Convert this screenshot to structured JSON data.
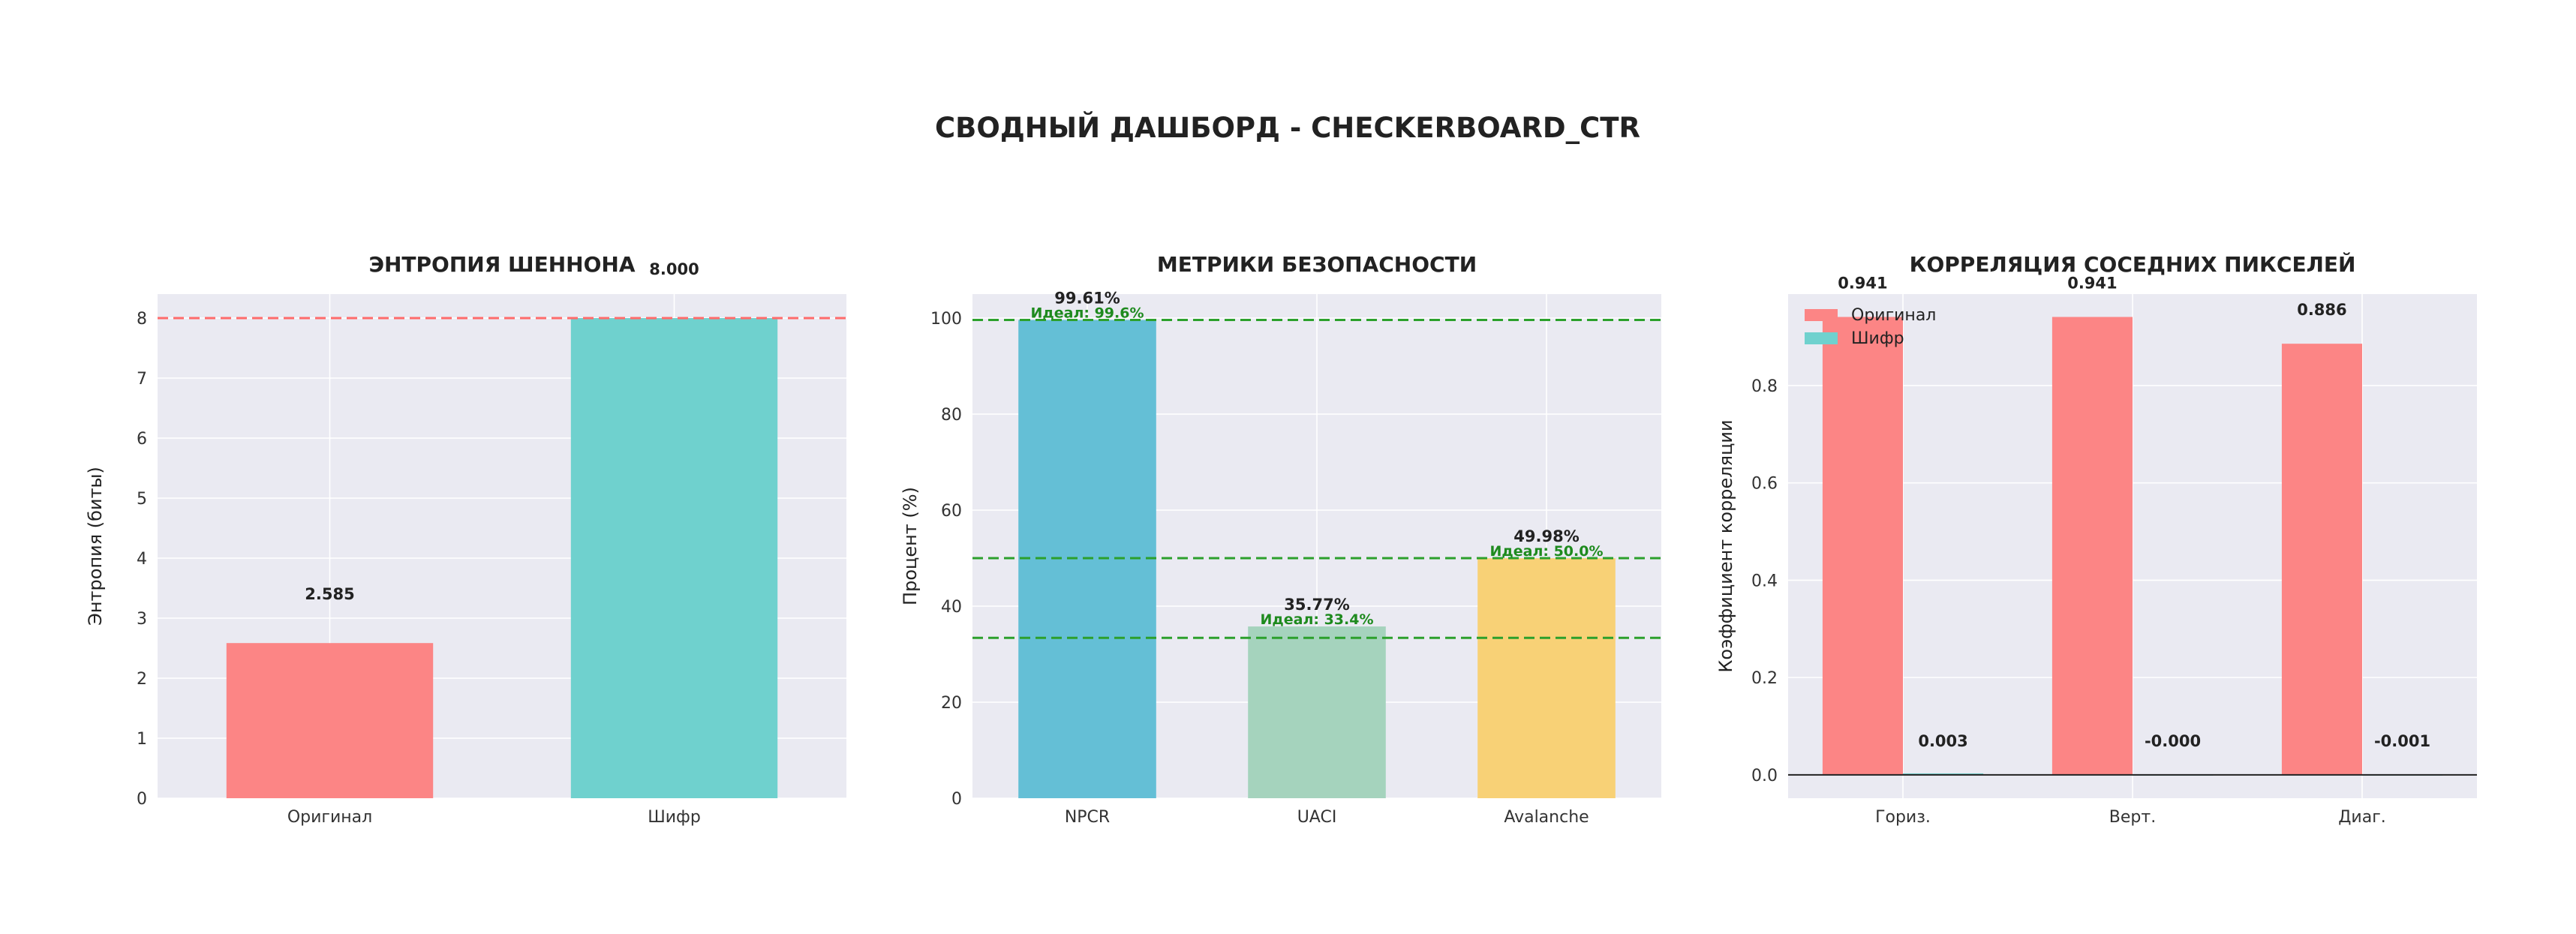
{
  "title": "СВОДНЫЙ ДАШБОРД - CHECKERBOARD_CTR",
  "chart_data": [
    {
      "type": "bar",
      "title": "ЭНТРОПИЯ ШЕННОНА",
      "ylabel": "Энтропия (биты)",
      "xlabel": "",
      "categories": [
        "Оригинал",
        "Шифр"
      ],
      "values": [
        2.585,
        8.0
      ],
      "value_labels": [
        "2.585",
        "8.000"
      ],
      "colors": [
        "#fc8585",
        "#6fd1ce"
      ],
      "ylim": [
        0,
        8.4
      ],
      "yticks": [
        0,
        1,
        2,
        3,
        4,
        5,
        6,
        7,
        8
      ],
      "ref_lines": [
        {
          "y": 8,
          "color": "#ff6b6b",
          "style": "dashed"
        }
      ],
      "grid": true
    },
    {
      "type": "bar",
      "title": "МЕТРИКИ БЕЗОПАСНОСТИ",
      "ylabel": "Процент (%)",
      "xlabel": "",
      "categories": [
        "NPCR",
        "UACI",
        "Avalanche"
      ],
      "values": [
        99.61,
        35.77,
        49.98
      ],
      "value_labels": [
        "99.61%",
        "35.77%",
        "49.98%"
      ],
      "colors": [
        "#64bfd6",
        "#a5d3bd",
        "#f8d176"
      ],
      "ideal_values": [
        99.6,
        33.4,
        50.0
      ],
      "ideal_labels": [
        "Идеал: 99.6%",
        "Идеал: 33.4%",
        "Идеал: 50.0%"
      ],
      "ideal_color": "#2ca02c",
      "ylim": [
        0,
        105
      ],
      "yticks": [
        0,
        20,
        40,
        60,
        80,
        100
      ],
      "grid": true
    },
    {
      "type": "bar",
      "title": "КОРРЕЛЯЦИЯ СОСЕДНИХ ПИКСЕЛЕЙ",
      "ylabel": "Коэффициент корреляции",
      "xlabel": "",
      "categories": [
        "Гориз.",
        "Верт.",
        "Диаг."
      ],
      "series": [
        {
          "name": "Оригинал",
          "values": [
            0.941,
            0.941,
            0.886
          ],
          "labels": [
            "0.941",
            "0.941",
            "0.886"
          ],
          "color": "#fc8585"
        },
        {
          "name": "Шифр",
          "values": [
            0.003,
            -0.0,
            -0.001
          ],
          "labels": [
            "0.003",
            "-0.000",
            "-0.001"
          ],
          "color": "#6fd1ce"
        }
      ],
      "ylim": [
        -0.048,
        0.988
      ],
      "yticks": [
        0.0,
        0.2,
        0.4,
        0.6,
        0.8
      ],
      "ytick_labels": [
        "0.0",
        "0.2",
        "0.4",
        "0.6",
        "0.8"
      ],
      "legend": "top-left",
      "grid": true
    }
  ]
}
